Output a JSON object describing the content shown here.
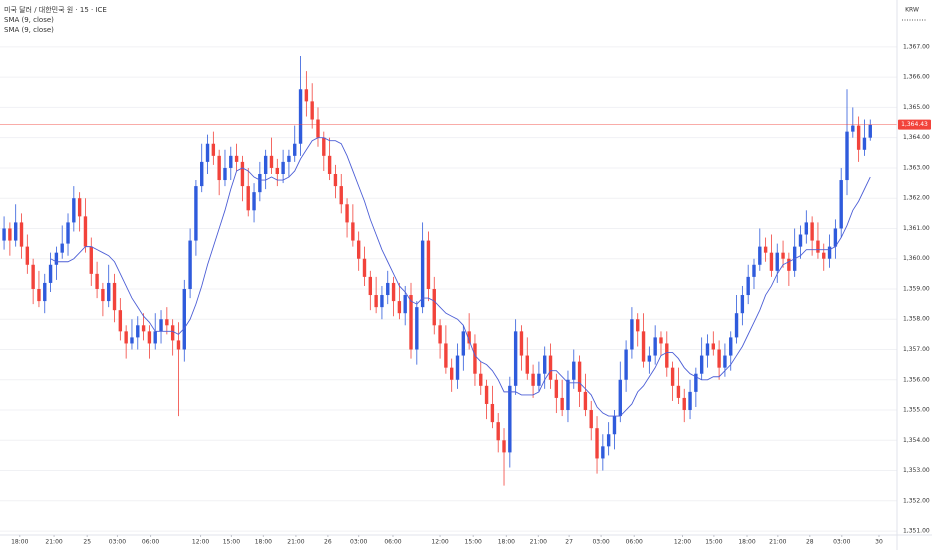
{
  "chart_data": {
    "type": "candlestick",
    "title": "미국 달러 / 대한민국 원 · 15 · ICE",
    "study_labels": [
      "SMA (9, close)",
      "SMA (9, close)"
    ],
    "currency": "KRW",
    "up_color": "#2f5bdc",
    "down_color": "#f2433b",
    "grid": true,
    "xlim": [
      -0.7,
      153.6
    ],
    "ylim": [
      1350.87,
      1368.55
    ],
    "yticks": [
      {
        "value": 1351,
        "label": "1,351.00"
      },
      {
        "value": 1352,
        "label": "1,352.00"
      },
      {
        "value": 1353,
        "label": "1,353.00"
      },
      {
        "value": 1354,
        "label": "1,354.00"
      },
      {
        "value": 1355,
        "label": "1,355.00"
      },
      {
        "value": 1356,
        "label": "1,356.00"
      },
      {
        "value": 1357,
        "label": "1,357.00"
      },
      {
        "value": 1358,
        "label": "1,358.00"
      },
      {
        "value": 1359,
        "label": "1,359.00"
      },
      {
        "value": 1360,
        "label": "1,360.00"
      },
      {
        "value": 1361,
        "label": "1,361.00"
      },
      {
        "value": 1362,
        "label": "1,362.00"
      },
      {
        "value": 1363,
        "label": "1,363.00"
      },
      {
        "value": 1364,
        "label": "1,364.00"
      },
      {
        "value": 1365,
        "label": "1,365.00"
      },
      {
        "value": 1366,
        "label": "1,366.00"
      },
      {
        "value": 1367,
        "label": "1,367.00"
      }
    ],
    "xticks": [
      {
        "value": 2.7,
        "label": "18:00"
      },
      {
        "value": 8.6,
        "label": "21:00"
      },
      {
        "value": 14.3,
        "label": "25"
      },
      {
        "value": 19.5,
        "label": "03:00"
      },
      {
        "value": 25.2,
        "label": "06:00"
      },
      {
        "value": 33.8,
        "label": "12:00"
      },
      {
        "value": 39.1,
        "label": "15:00"
      },
      {
        "value": 44.6,
        "label": "18:00"
      },
      {
        "value": 50.2,
        "label": "21:00"
      },
      {
        "value": 55.7,
        "label": "26"
      },
      {
        "value": 61.0,
        "label": "03:00"
      },
      {
        "value": 66.9,
        "label": "06:00"
      },
      {
        "value": 75.0,
        "label": "12:00"
      },
      {
        "value": 80.7,
        "label": "15:00"
      },
      {
        "value": 86.4,
        "label": "18:00"
      },
      {
        "value": 91.9,
        "label": "21:00"
      },
      {
        "value": 97.2,
        "label": "27"
      },
      {
        "value": 102.7,
        "label": "03:00"
      },
      {
        "value": 108.4,
        "label": "06:00"
      },
      {
        "value": 116.7,
        "label": "12:00"
      },
      {
        "value": 122.1,
        "label": "15:00"
      },
      {
        "value": 127.8,
        "label": "18:00"
      },
      {
        "value": 133.1,
        "label": "21:00"
      },
      {
        "value": 138.6,
        "label": "28"
      },
      {
        "value": 144.1,
        "label": "03:00"
      },
      {
        "value": 150.5,
        "label": "30"
      }
    ],
    "last_price": {
      "value": 1364.43,
      "label": "1,364.43",
      "color": "#f2433b"
    },
    "open": [
      1360.6,
      1361.0,
      1360.6,
      1361.2,
      1360.4,
      1359.8,
      1359.0,
      1358.6,
      1359.2,
      1359.8,
      1360.2,
      1360.5,
      1361.2,
      1362.0,
      1361.4,
      1360.4,
      1359.5,
      1359.0,
      1358.6,
      1359.2,
      1358.3,
      1357.6,
      1357.2,
      1357.4,
      1357.8,
      1357.6,
      1357.2,
      1357.6,
      1358.0,
      1357.8,
      1357.3,
      1357.0,
      1359.0,
      1360.6,
      1362.4,
      1363.2,
      1363.8,
      1363.4,
      1362.6,
      1363.0,
      1363.4,
      1363.2,
      1362.4,
      1361.6,
      1362.2,
      1362.8,
      1363.4,
      1363.0,
      1362.8,
      1363.2,
      1363.4,
      1363.8,
      1365.6,
      1365.2,
      1364.6,
      1364.0,
      1363.4,
      1362.8,
      1362.4,
      1361.8,
      1361.2,
      1360.6,
      1360.0,
      1359.4,
      1358.8,
      1358.4,
      1358.8,
      1359.2,
      1358.6,
      1358.2,
      1358.8,
      1357.0,
      1358.4,
      1360.6,
      1359.0,
      1357.8,
      1357.2,
      1356.4,
      1356.0,
      1356.8,
      1357.6,
      1357.2,
      1356.2,
      1355.8,
      1355.2,
      1354.6,
      1354.0,
      1353.6,
      1355.8,
      1357.6,
      1356.8,
      1356.2,
      1355.8,
      1356.2,
      1356.8,
      1356.0,
      1355.4,
      1355.0,
      1356.0,
      1356.6,
      1355.6,
      1355.0,
      1354.4,
      1353.4,
      1353.8,
      1354.2,
      1354.8,
      1356.0,
      1357.0,
      1358.0,
      1357.6,
      1356.6,
      1356.8,
      1357.4,
      1357.2,
      1356.4,
      1355.8,
      1355.4,
      1355.0,
      1355.6,
      1356.2,
      1356.8,
      1357.2,
      1357.0,
      1356.4,
      1356.8,
      1357.4,
      1358.2,
      1358.8,
      1359.4,
      1359.8,
      1360.4,
      1360.2,
      1359.6,
      1360.2,
      1360.0,
      1359.6,
      1360.4,
      1360.8,
      1361.2,
      1360.6,
      1360.2,
      1360.0,
      1360.4,
      1361.0,
      1362.6,
      1364.2,
      1364.4,
      1363.6,
      1364.0
    ],
    "high": [
      1361.4,
      1361.2,
      1361.8,
      1361.5,
      1360.8,
      1360.0,
      1359.6,
      1359.5,
      1360.2,
      1360.4,
      1361.1,
      1361.5,
      1362.4,
      1362.2,
      1362.0,
      1360.7,
      1359.9,
      1359.2,
      1359.8,
      1359.5,
      1358.7,
      1357.8,
      1358.0,
      1358.1,
      1358.2,
      1357.8,
      1358.2,
      1358.3,
      1358.4,
      1358.0,
      1357.9,
      1359.3,
      1361.0,
      1362.6,
      1363.8,
      1364.1,
      1364.2,
      1363.6,
      1363.6,
      1363.7,
      1363.8,
      1363.4,
      1363.0,
      1362.5,
      1363.2,
      1363.6,
      1364.0,
      1363.3,
      1363.6,
      1363.6,
      1364.4,
      1366.7,
      1366.2,
      1365.8,
      1365.0,
      1364.2,
      1364.0,
      1363.1,
      1362.8,
      1362.0,
      1361.8,
      1360.9,
      1360.4,
      1359.6,
      1359.4,
      1359.1,
      1359.6,
      1359.4,
      1359.2,
      1359.1,
      1359.2,
      1358.6,
      1361.2,
      1360.9,
      1359.4,
      1358.0,
      1357.8,
      1356.7,
      1357.2,
      1357.8,
      1358.2,
      1357.5,
      1356.6,
      1356.0,
      1355.8,
      1354.9,
      1354.4,
      1356.1,
      1358.0,
      1357.8,
      1357.4,
      1356.5,
      1356.6,
      1357.1,
      1357.2,
      1356.2,
      1356.0,
      1356.3,
      1357.0,
      1356.8,
      1356.2,
      1355.3,
      1354.8,
      1354.2,
      1354.6,
      1355.0,
      1356.6,
      1357.3,
      1358.4,
      1358.2,
      1358.2,
      1357.1,
      1357.8,
      1357.6,
      1357.6,
      1356.6,
      1356.4,
      1355.7,
      1356.0,
      1356.4,
      1357.4,
      1357.5,
      1357.6,
      1357.3,
      1357.2,
      1357.6,
      1358.8,
      1359.1,
      1359.8,
      1360.0,
      1361.0,
      1360.7,
      1360.8,
      1360.5,
      1360.6,
      1360.2,
      1361.0,
      1361.1,
      1361.6,
      1361.4,
      1361.2,
      1360.5,
      1360.8,
      1361.3,
      1363.0,
      1365.6,
      1365.0,
      1364.7,
      1364.6,
      1364.6
    ],
    "low": [
      1360.3,
      1360.1,
      1360.4,
      1360.0,
      1359.5,
      1358.5,
      1358.4,
      1358.2,
      1358.9,
      1359.3,
      1360.0,
      1360.1,
      1360.9,
      1360.9,
      1360.2,
      1359.1,
      1358.7,
      1358.1,
      1358.4,
      1357.9,
      1357.3,
      1356.7,
      1357.0,
      1357.0,
      1357.3,
      1356.7,
      1357.0,
      1357.2,
      1357.5,
      1356.8,
      1354.8,
      1356.6,
      1358.7,
      1360.1,
      1362.2,
      1362.8,
      1363.1,
      1362.1,
      1362.4,
      1362.6,
      1362.9,
      1361.9,
      1361.4,
      1361.2,
      1361.9,
      1362.3,
      1362.8,
      1362.4,
      1362.5,
      1362.7,
      1363.2,
      1363.4,
      1364.7,
      1364.3,
      1363.7,
      1362.9,
      1362.6,
      1362.0,
      1361.5,
      1360.7,
      1360.4,
      1359.6,
      1359.1,
      1358.3,
      1358.2,
      1358.0,
      1358.5,
      1358.1,
      1358.0,
      1357.8,
      1356.7,
      1356.5,
      1358.2,
      1358.6,
      1357.5,
      1356.7,
      1356.2,
      1355.6,
      1355.7,
      1356.3,
      1357.0,
      1355.8,
      1355.5,
      1354.7,
      1354.4,
      1353.6,
      1352.5,
      1353.1,
      1355.5,
      1356.3,
      1356.0,
      1355.4,
      1355.6,
      1355.7,
      1355.7,
      1354.9,
      1354.8,
      1354.6,
      1355.7,
      1355.1,
      1354.8,
      1354.0,
      1352.9,
      1353.0,
      1353.5,
      1353.7,
      1354.6,
      1355.6,
      1356.7,
      1357.1,
      1356.4,
      1356.2,
      1356.5,
      1356.8,
      1356.1,
      1355.3,
      1355.2,
      1354.6,
      1354.7,
      1355.1,
      1356.0,
      1356.4,
      1356.8,
      1356.0,
      1356.1,
      1356.3,
      1357.2,
      1357.8,
      1358.5,
      1359.0,
      1359.6,
      1359.9,
      1359.4,
      1359.2,
      1359.7,
      1359.1,
      1359.4,
      1360.0,
      1360.5,
      1360.1,
      1360.0,
      1359.6,
      1359.7,
      1360.0,
      1360.7,
      1362.1,
      1364.0,
      1363.2,
      1363.4,
      1363.9
    ],
    "close": [
      1361.0,
      1360.6,
      1361.2,
      1360.4,
      1359.8,
      1359.0,
      1358.6,
      1359.2,
      1359.8,
      1360.2,
      1360.5,
      1361.2,
      1362.0,
      1361.4,
      1360.4,
      1359.5,
      1359.0,
      1358.6,
      1359.2,
      1358.3,
      1357.6,
      1357.2,
      1357.4,
      1357.8,
      1357.6,
      1357.2,
      1357.6,
      1358.0,
      1357.8,
      1357.3,
      1357.0,
      1359.0,
      1360.6,
      1362.4,
      1363.2,
      1363.8,
      1363.4,
      1362.6,
      1363.0,
      1363.4,
      1363.2,
      1362.4,
      1361.6,
      1362.2,
      1362.8,
      1363.4,
      1363.0,
      1362.8,
      1363.2,
      1363.4,
      1363.8,
      1365.6,
      1365.2,
      1364.6,
      1364.0,
      1363.4,
      1362.8,
      1362.4,
      1361.8,
      1361.2,
      1360.6,
      1360.0,
      1359.4,
      1358.8,
      1358.4,
      1358.8,
      1359.2,
      1358.6,
      1358.2,
      1358.8,
      1357.0,
      1358.4,
      1360.6,
      1359.0,
      1357.8,
      1357.2,
      1356.4,
      1356.0,
      1356.8,
      1357.6,
      1357.2,
      1356.2,
      1355.8,
      1355.2,
      1354.6,
      1354.0,
      1353.6,
      1355.8,
      1357.6,
      1356.8,
      1356.2,
      1355.8,
      1356.2,
      1356.8,
      1356.0,
      1355.4,
      1355.0,
      1356.0,
      1356.6,
      1355.6,
      1355.0,
      1354.4,
      1353.4,
      1353.8,
      1354.2,
      1354.8,
      1356.0,
      1357.0,
      1358.0,
      1357.6,
      1356.6,
      1356.8,
      1357.4,
      1357.2,
      1356.4,
      1355.8,
      1355.4,
      1355.0,
      1355.6,
      1356.2,
      1356.8,
      1357.2,
      1357.0,
      1356.4,
      1356.8,
      1357.4,
      1358.2,
      1358.8,
      1359.4,
      1359.8,
      1360.4,
      1360.2,
      1359.6,
      1360.2,
      1360.0,
      1359.6,
      1360.4,
      1360.8,
      1361.2,
      1360.6,
      1360.2,
      1360.0,
      1360.4,
      1361.0,
      1362.6,
      1364.2,
      1364.4,
      1363.6,
      1364.0,
      1364.43
    ],
    "sma": {
      "color": "#4d5fd6",
      "values": [
        null,
        null,
        null,
        null,
        null,
        null,
        null,
        null,
        1360.0,
        1359.9,
        1359.9,
        1359.9,
        1360.0,
        1360.2,
        1360.4,
        1360.4,
        1360.3,
        1360.2,
        1360.1,
        1359.9,
        1359.5,
        1359.1,
        1358.7,
        1358.4,
        1358.1,
        1357.9,
        1357.6,
        1357.6,
        1357.6,
        1357.6,
        1357.5,
        1357.7,
        1358.0,
        1358.5,
        1359.1,
        1359.8,
        1360.4,
        1361.0,
        1361.6,
        1362.3,
        1362.9,
        1363.0,
        1362.9,
        1362.7,
        1362.6,
        1362.6,
        1362.7,
        1362.6,
        1362.6,
        1362.7,
        1362.9,
        1363.3,
        1363.6,
        1363.9,
        1364.0,
        1364.0,
        1363.9,
        1363.9,
        1363.8,
        1363.4,
        1362.9,
        1362.4,
        1361.9,
        1361.3,
        1360.8,
        1360.3,
        1359.9,
        1359.5,
        1359.1,
        1358.9,
        1358.6,
        1358.5,
        1358.7,
        1358.7,
        1358.6,
        1358.4,
        1358.2,
        1358.1,
        1358.0,
        1357.8,
        1357.3,
        1356.8,
        1356.6,
        1356.5,
        1356.3,
        1356.0,
        1355.6,
        1355.6,
        1355.6,
        1355.5,
        1355.5,
        1355.5,
        1355.6,
        1356.0,
        1356.3,
        1356.3,
        1356.1,
        1355.9,
        1355.9,
        1355.9,
        1355.7,
        1355.5,
        1355.1,
        1354.9,
        1354.8,
        1354.8,
        1354.8,
        1355.0,
        1355.2,
        1355.6,
        1355.8,
        1356.1,
        1356.4,
        1356.8,
        1356.9,
        1356.9,
        1356.7,
        1356.4,
        1356.2,
        1356.1,
        1356.0,
        1356.0,
        1356.1,
        1356.1,
        1356.3,
        1356.5,
        1356.8,
        1357.1,
        1357.5,
        1357.9,
        1358.3,
        1358.8,
        1359.1,
        1359.5,
        1359.8,
        1359.9,
        1360.0,
        1360.1,
        1360.3,
        1360.3,
        1360.3,
        1360.3,
        1360.3,
        1360.4,
        1360.7,
        1361.1,
        1361.6,
        1361.9,
        1362.3,
        1362.7
      ]
    }
  }
}
